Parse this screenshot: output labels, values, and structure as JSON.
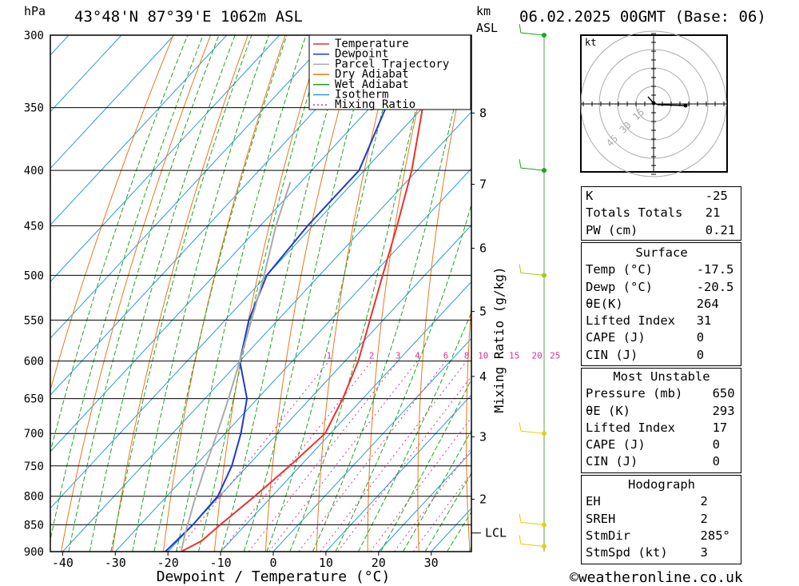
{
  "header": {
    "location": "43°48'N 87°39'E 1062m ASL",
    "datetime": "06.02.2025 00GMT (Base: 06)",
    "p_unit": "hPa",
    "km_unit": "km",
    "asl_unit": "ASL"
  },
  "chart_data": {
    "type": "line",
    "title": "43°48'N 87°39'E 1062m ASL",
    "xlabel": "Dewpoint / Temperature (°C)",
    "ylabel": "hPa",
    "y2label": "Mixing Ratio (g/kg)",
    "xlim": [
      -40,
      35
    ],
    "ylim": [
      900,
      300
    ],
    "x_ticks": [
      -40,
      -30,
      -20,
      -10,
      0,
      10,
      20,
      30
    ],
    "pressure_ticks": [
      300,
      350,
      400,
      450,
      500,
      550,
      600,
      650,
      700,
      750,
      800,
      850,
      900
    ],
    "km_ticks": [
      {
        "km": 2,
        "p": 805
      },
      {
        "km": 3,
        "p": 705
      },
      {
        "km": 4,
        "p": 620
      },
      {
        "km": 5,
        "p": 540
      },
      {
        "km": 6,
        "p": 472
      },
      {
        "km": 7,
        "p": 412
      },
      {
        "km": 8,
        "p": 354
      }
    ],
    "lcl": {
      "label": "LCL",
      "p": 865
    },
    "mixing_ratios": [
      "1",
      "2",
      "3",
      "4",
      "6",
      "8",
      "10",
      "15",
      "20",
      "25"
    ],
    "legend": [
      {
        "name": "Temperature",
        "color": "#e8322f",
        "dash": false
      },
      {
        "name": "Dewpoint",
        "color": "#1f3ad0",
        "dash": false
      },
      {
        "name": "Parcel Trajectory",
        "color": "#aaaaaa",
        "dash": false
      },
      {
        "name": "Dry Adiabat",
        "color": "#e6781e",
        "dash": false
      },
      {
        "name": "Wet Adiabat",
        "color": "#1fa51f",
        "dash": false
      },
      {
        "name": "Isotherm",
        "color": "#2b9ad6",
        "dash": false
      },
      {
        "name": "Mixing Ratio",
        "color": "#d6309a",
        "dash": true
      }
    ],
    "series": [
      {
        "name": "Temperature",
        "color": "#e8322f",
        "points": [
          [
            900,
            -17.5
          ],
          [
            880,
            -15.5
          ],
          [
            850,
            -14.8
          ],
          [
            800,
            -13.3
          ],
          [
            750,
            -12.0
          ],
          [
            700,
            -11.0
          ],
          [
            650,
            -13.8
          ],
          [
            600,
            -17.5
          ],
          [
            550,
            -22.5
          ],
          [
            500,
            -28.0
          ],
          [
            450,
            -34.0
          ],
          [
            400,
            -41.0
          ],
          [
            350,
            -50.0
          ],
          [
            300,
            -58.0
          ]
        ]
      },
      {
        "name": "Dewpoint",
        "color": "#1f3ad0",
        "points": [
          [
            900,
            -20.5
          ],
          [
            850,
            -20.0
          ],
          [
            800,
            -20.3
          ],
          [
            750,
            -23.0
          ],
          [
            700,
            -27.0
          ],
          [
            650,
            -32.0
          ],
          [
            600,
            -40.0
          ],
          [
            550,
            -45.5
          ],
          [
            500,
            -50.0
          ],
          [
            450,
            -51.0
          ],
          [
            400,
            -51.0
          ],
          [
            350,
            -57.0
          ],
          [
            300,
            -65.0
          ]
        ]
      },
      {
        "name": "Parcel Trajectory",
        "color": "#aaaaaa",
        "points": [
          [
            900,
            -17.5
          ],
          [
            865,
            -20.0
          ],
          [
            800,
            -24.5
          ],
          [
            750,
            -28.0
          ],
          [
            700,
            -31.5
          ],
          [
            650,
            -35.5
          ],
          [
            600,
            -40.0
          ],
          [
            550,
            -45.0
          ],
          [
            500,
            -50.5
          ],
          [
            450,
            -57.0
          ],
          [
            410,
            -62.0
          ]
        ]
      }
    ],
    "hodograph": {
      "unit": "kt",
      "rings": [
        "15",
        "30",
        "45"
      ]
    }
  },
  "indices": {
    "rows": [
      {
        "label": "K",
        "value": "-25"
      },
      {
        "label": "Totals Totals",
        "value": "21"
      },
      {
        "label": "PW (cm)",
        "value": "0.21"
      }
    ]
  },
  "surface": {
    "title": "Surface",
    "rows": [
      {
        "label": "Temp (°C)",
        "value": "-17.5"
      },
      {
        "label": "Dewp (°C)",
        "value": "-20.5"
      },
      {
        "label": "θE(K)",
        "value": "264"
      },
      {
        "label": "Lifted Index",
        "value": "31"
      },
      {
        "label": "CAPE (J)",
        "value": "0"
      },
      {
        "label": "CIN (J)",
        "value": "0"
      }
    ]
  },
  "most_unstable": {
    "title": "Most Unstable",
    "rows": [
      {
        "label": "Pressure (mb)",
        "value": "650"
      },
      {
        "label": "θE (K)",
        "value": "293"
      },
      {
        "label": "Lifted Index",
        "value": "17"
      },
      {
        "label": "CAPE (J)",
        "value": "0"
      },
      {
        "label": "CIN (J)",
        "value": "0"
      }
    ]
  },
  "hodograph_table": {
    "title": "Hodograph",
    "rows": [
      {
        "label": "EH",
        "value": "2"
      },
      {
        "label": "SREH",
        "value": "2"
      },
      {
        "label": "StmDir",
        "value": "285°"
      },
      {
        "label": "StmSpd (kt)",
        "value": "3"
      }
    ]
  },
  "footer": {
    "copyright": "©weatheronline.co.uk"
  }
}
